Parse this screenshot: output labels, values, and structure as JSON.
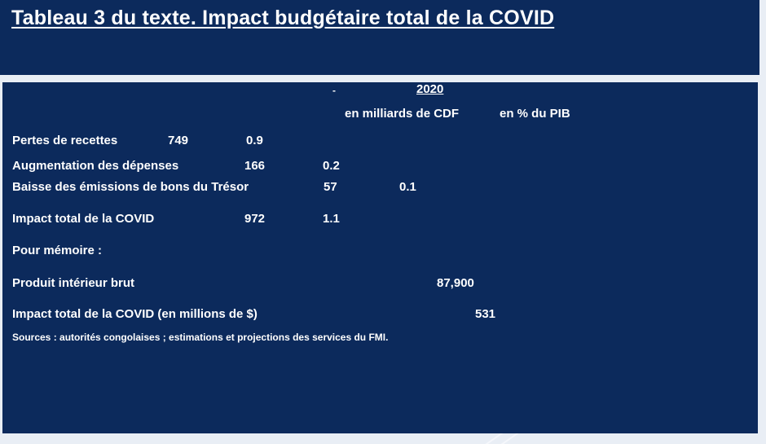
{
  "title": "Tableau 3 du texte. Impact budgétaire total de la COVID",
  "header": {
    "dash": "-",
    "year": "2020",
    "col_cdf": "en milliards de CDF",
    "col_pib": "en % du PIB"
  },
  "rows": [
    {
      "label": "Pertes de recettes",
      "cdf": "749",
      "pib": "0.9"
    },
    {
      "label": "Augmentation des dépenses",
      "cdf": "166",
      "pib": "0.2"
    },
    {
      "label": "Baisse des émissions de bons du Trésor",
      "cdf": "57",
      "pib": "0.1"
    },
    {
      "label": "Impact total de la COVID",
      "cdf": "972",
      "pib": "1.1"
    }
  ],
  "memo": {
    "label": "Pour mémoire :",
    "pib_label": "Produit intérieur brut",
    "pib_value": "87,900",
    "usd_label": "Impact total de la COVID (en millions de $)",
    "usd_value": "531"
  },
  "sources": "Sources : autorités congolaises ; estimations et projections des services du   FMI.",
  "colors": {
    "panel": "#0c2a5c",
    "text": "#ffffff",
    "background": "#e9eef5"
  }
}
